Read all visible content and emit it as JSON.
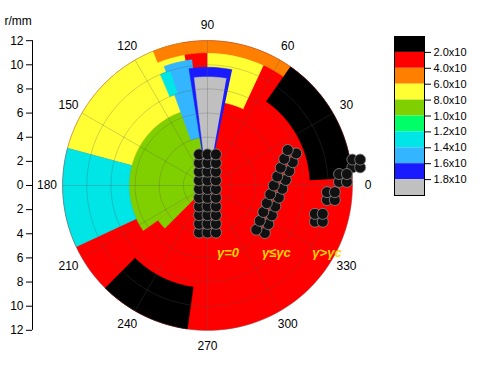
{
  "chart_data": {
    "type": "polar_contour",
    "r_label": "r/mm",
    "rlim": [
      0,
      12
    ],
    "rticks": [
      0,
      2,
      4,
      6,
      8,
      10,
      12
    ],
    "angle_ticks": [
      0,
      30,
      60,
      90,
      120,
      150,
      180,
      210,
      240,
      270,
      300,
      330
    ],
    "grid": true,
    "cells": [
      {
        "theta": [
          0,
          360
        ],
        "r": [
          0,
          12
        ],
        "value": 3
      },
      {
        "theta": [
          90,
          215
        ],
        "r": [
          0,
          6.5
        ],
        "value": 9
      },
      {
        "theta": [
          215,
          225
        ],
        "r": [
          0,
          5
        ],
        "value": 9
      },
      {
        "theta": [
          100,
          165
        ],
        "r": [
          6.5,
          12
        ],
        "value": 7
      },
      {
        "theta": [
          165,
          205
        ],
        "r": [
          6.5,
          12
        ],
        "value": 13
      },
      {
        "theta": [
          65,
          90
        ],
        "r": [
          7,
          11
        ],
        "value": 7
      },
      {
        "theta": [
          55,
          112
        ],
        "r": [
          11,
          12
        ],
        "value": 5
      },
      {
        "theta": [
          3,
          55
        ],
        "r": [
          8.5,
          12
        ],
        "value": 1
      },
      {
        "theta": [
          225,
          262
        ],
        "r": [
          8.5,
          12
        ],
        "value": 1
      },
      {
        "theta": [
          97,
          110
        ],
        "r": [
          4,
          10.5
        ],
        "value": 15
      },
      {
        "theta": [
          108,
          113
        ],
        "r": [
          8,
          10
        ],
        "value": 13
      },
      {
        "theta": [
          92,
          97
        ],
        "r": [
          2,
          9
        ],
        "value": 11
      },
      {
        "theta": [
          78,
          99
        ],
        "r": [
          0,
          9.8
        ],
        "value": 17
      },
      {
        "theta": [
          80,
          97
        ],
        "r": [
          0,
          9
        ],
        "value": 19
      },
      {
        "theta": [
          70,
          110
        ],
        "r": [
          0,
          2.5
        ],
        "value": 19
      }
    ],
    "colorbar": {
      "range": [
        0,
        20
      ],
      "ticks": [
        {
          "value": 2,
          "label": "2.0x10"
        },
        {
          "value": 4,
          "label": "4.0x10"
        },
        {
          "value": 6,
          "label": "6.0x10"
        },
        {
          "value": 8,
          "label": "8.0x10"
        },
        {
          "value": 10,
          "label": "1.0x10"
        },
        {
          "value": 12,
          "label": "1.2x10"
        },
        {
          "value": 14,
          "label": "1.4x10"
        },
        {
          "value": 16,
          "label": "1.6x10"
        },
        {
          "value": 18,
          "label": "1.8x10"
        }
      ],
      "colors": [
        "#000000",
        "#ff0000",
        "#ff8000",
        "#ffff33",
        "#80d000",
        "#00ff66",
        "#00e5e5",
        "#33b5ff",
        "#1a1aff",
        "#c0c0c0"
      ]
    },
    "annotations": [
      "γ=0",
      "γ≤γc",
      "γ>γc"
    ]
  }
}
